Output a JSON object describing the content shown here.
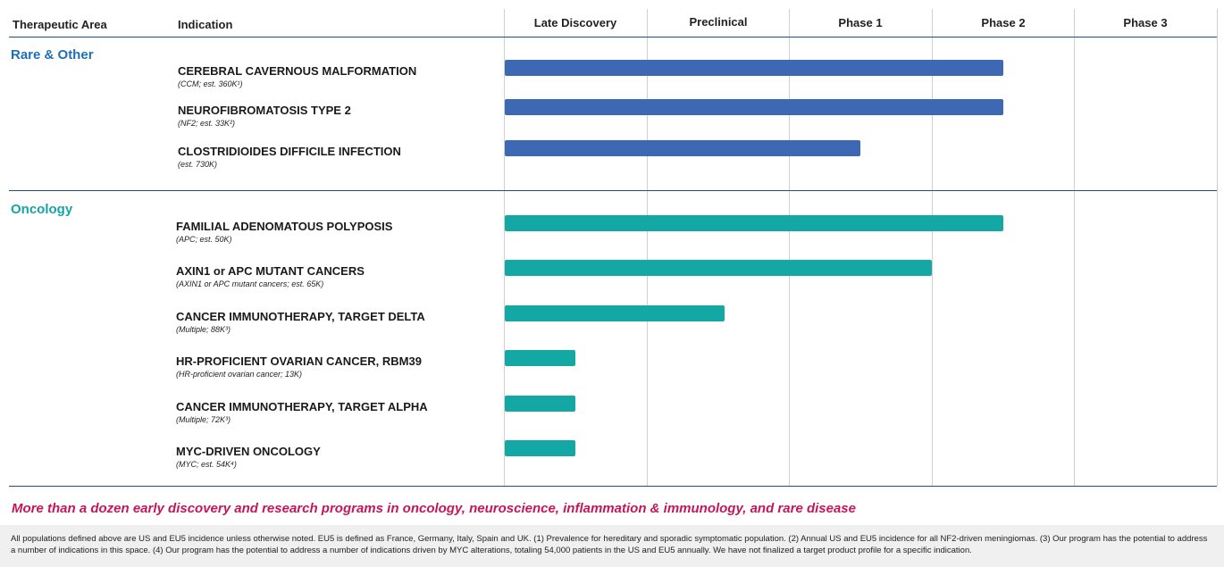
{
  "header": {
    "therapeutic_area": "Therapeutic Area",
    "indication": "Indication",
    "stages": [
      "Late Discovery",
      "Preclinical",
      "Phase 1",
      "Phase 2",
      "Phase 3"
    ]
  },
  "colors": {
    "rare_accent": "#1f6fb5",
    "rare_bar": "#3d69b4",
    "oncology_accent": "#16a5a5",
    "oncology_bar": "#13a8a4",
    "divider": "#1f4e79",
    "tagline": "#c2185b"
  },
  "chart_data": {
    "type": "bar",
    "orientation": "horizontal",
    "x_axis": [
      "Late Discovery",
      "Preclinical",
      "Phase 1",
      "Phase 2",
      "Phase 3"
    ],
    "xlim": [
      0,
      5
    ],
    "grid": true,
    "groups": [
      {
        "area": "Rare & Other",
        "color_key": "rare_bar",
        "accent_key": "rare_accent",
        "programs": [
          {
            "name": "CEREBRAL CAVERNOUS MALFORMATION",
            "detail": "(CCM; est. 360K¹)",
            "start": 0.0,
            "end": 3.5
          },
          {
            "name": "NEUROFIBROMATOSIS TYPE 2",
            "detail": "(NF2; est. 33K²)",
            "start": 0.0,
            "end": 3.5
          },
          {
            "name": "CLOSTRIDIOIDES DIFFICILE INFECTION",
            "detail": "(est. 730K)",
            "start": 0.0,
            "end": 2.5
          }
        ]
      },
      {
        "area": "Oncology",
        "color_key": "oncology_bar",
        "accent_key": "oncology_accent",
        "programs": [
          {
            "name": "FAMILIAL ADENOMATOUS POLYPOSIS",
            "detail": "(APC; est. 50K)",
            "start": 0.0,
            "end": 3.5
          },
          {
            "name": "AXIN1 or APC MUTANT CANCERS",
            "detail": "(AXIN1 or APC mutant cancers; est. 65K)",
            "start": 0.0,
            "end": 3.0
          },
          {
            "name": "CANCER IMMUNOTHERAPY, TARGET DELTA",
            "detail": "(Multiple; 88K³)",
            "start": 0.0,
            "end": 1.55
          },
          {
            "name": "HR-PROFICIENT OVARIAN CANCER, RBM39",
            "detail": "(HR-proficient ovarian cancer; 13K)",
            "start": 0.0,
            "end": 0.5
          },
          {
            "name": "CANCER IMMUNOTHERAPY, TARGET ALPHA",
            "detail": "(Multiple; 72K³)",
            "start": 0.0,
            "end": 0.5
          },
          {
            "name": "MYC-DRIVEN ONCOLOGY",
            "detail": "(MYC; est. 54K⁴)",
            "start": 0.0,
            "end": 0.5
          }
        ]
      }
    ]
  },
  "tagline": "More than a dozen early discovery and research programs in oncology, neuroscience, inflammation & immunology, and rare disease",
  "footnote": "All populations defined above are US and EU5 incidence unless otherwise noted. EU5 is defined as France, Germany, Italy, Spain and UK. (1) Prevalence for hereditary and sporadic symptomatic population. (2) Annual US and EU5 incidence for all NF2-driven meningiomas. (3) Our program has the potential to address a number of indications in this space. (4) Our program has the potential to address a number of indications driven by MYC alterations, totaling 54,000 patients in the US and EU5 annually. We have not finalized a target product profile for a specific indication."
}
